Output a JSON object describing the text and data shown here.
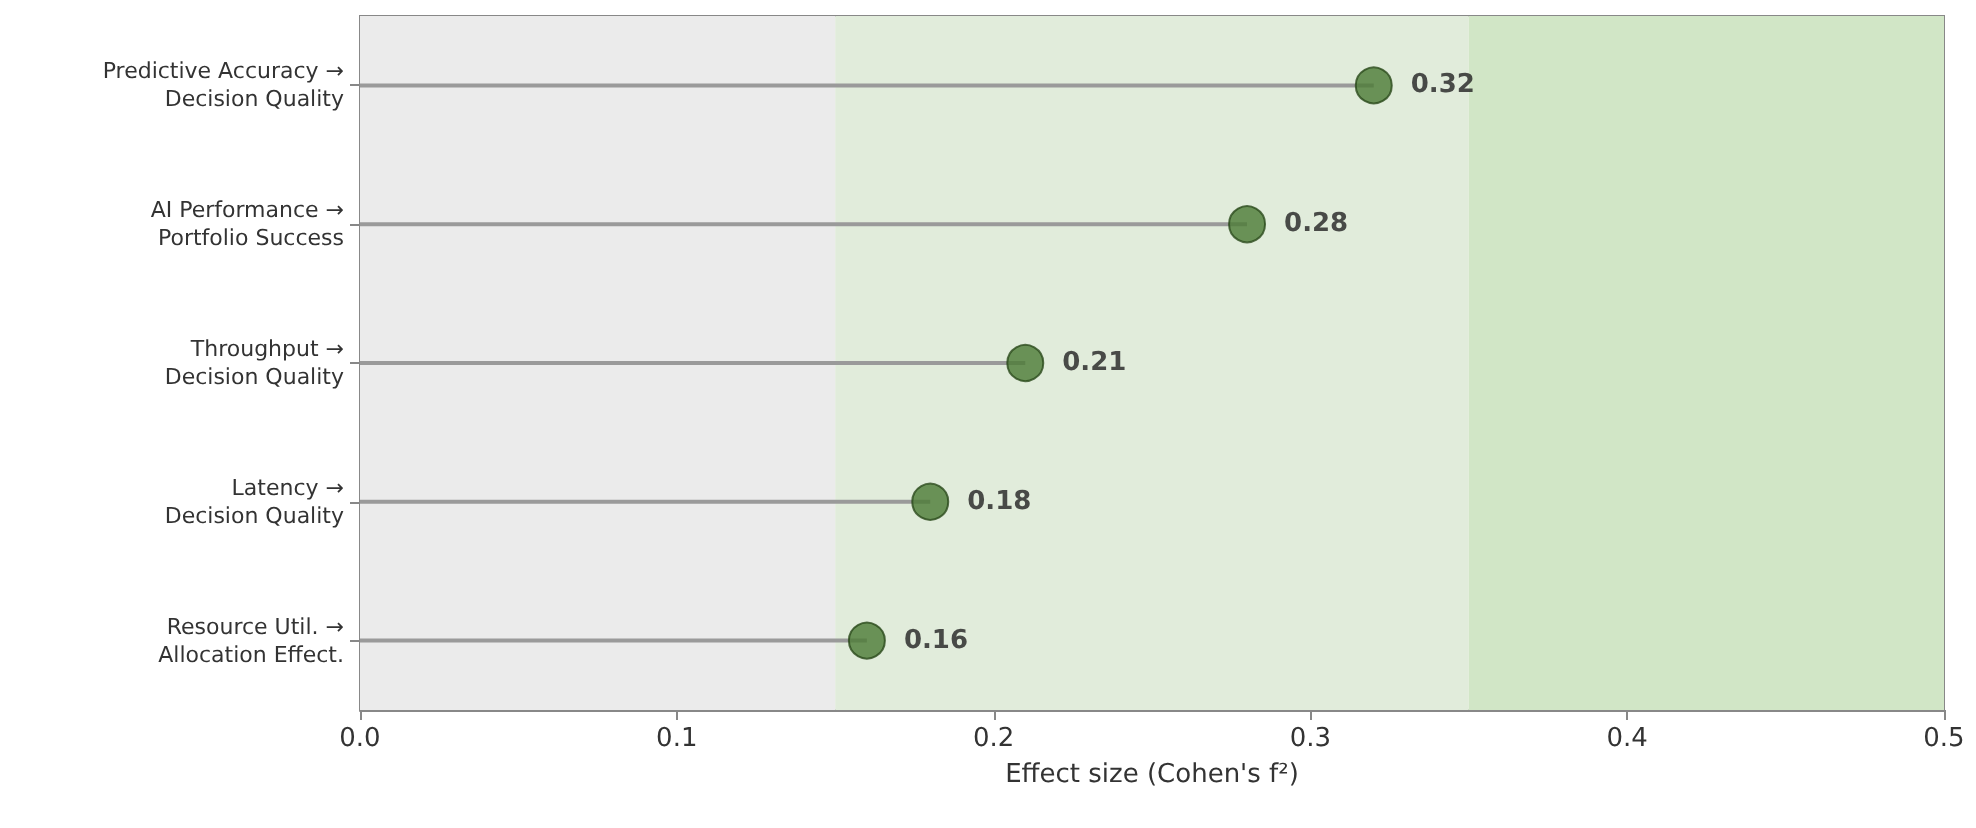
{
  "chart_data": {
    "type": "lollipop",
    "orientation": "horizontal",
    "xlabel": "Effect size (Cohen's f²)",
    "categories": [
      "Predictive Accuracy → Decision Quality",
      "AI Performance → Portfolio Success",
      "Throughput → Decision Quality",
      "Latency → Decision Quality",
      "Resource Util. → Allocation Effect."
    ],
    "values": [
      0.32,
      0.28,
      0.21,
      0.18,
      0.16
    ],
    "color": "#4b7a34",
    "xlim": [
      0,
      0.5
    ],
    "xticks": [
      {
        "value": 0,
        "label": "0.0"
      },
      0.1,
      0.2,
      0.3,
      0.4,
      0.5
    ],
    "bands": [
      {
        "axis": "x",
        "from": 0,
        "to": 0.15,
        "color": "#ebebeb"
      },
      {
        "axis": "x",
        "from": 0.15,
        "to": 0.35,
        "color": "#e1ecdb"
      },
      {
        "axis": "x",
        "from": 0.35,
        "to": 0.5,
        "color": "#d1e6c6"
      }
    ],
    "data_labels": true,
    "marker": "circle",
    "grid": false
  }
}
